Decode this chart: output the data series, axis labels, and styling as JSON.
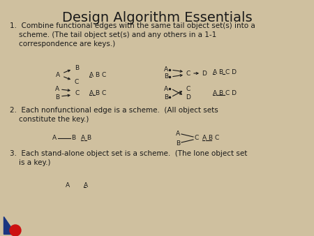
{
  "title": "Design Algorithm Essentials",
  "bg_color": "#CFC09F",
  "text_color": "#1a1a1a",
  "title_fontsize": 14,
  "body_fontsize": 7.5,
  "diagram_fontsize": 6.5,
  "item1_text": "1.  Combine functional edges with the same tail object set(s) into a\n    scheme. (The tail object set(s) and any others in a 1-1\n    correspondence are keys.)",
  "item2_text": "2.  Each nonfunctional edge is a scheme.  (All object sets\n    constitute the key.)",
  "item3_text": "3.  Each stand-alone object set is a scheme.  (The lone object set\n    is a key.)"
}
